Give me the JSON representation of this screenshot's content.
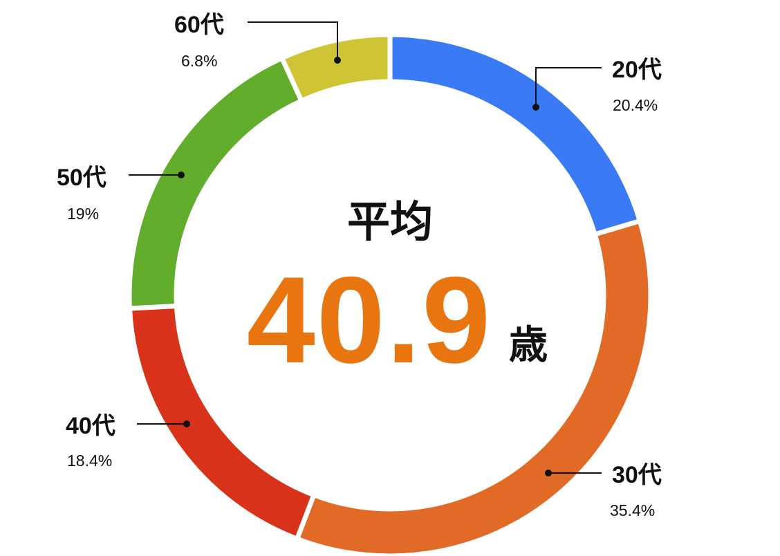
{
  "chart_data": {
    "type": "pie",
    "donut": true,
    "start": "top",
    "direction": "clockwise",
    "categories": [
      "20代",
      "30代",
      "40代",
      "50代",
      "60代"
    ],
    "values": [
      20.4,
      35.4,
      18.4,
      19,
      6.8
    ],
    "value_labels": [
      "20.4%",
      "35.4%",
      "18.4%",
      "19%",
      "6.8%"
    ],
    "colors": [
      "#3a7bf5",
      "#e16b26",
      "#d9321a",
      "#62ae2c",
      "#cfc434"
    ],
    "center": {
      "label": "平均",
      "value": "40.9",
      "unit": "歳",
      "value_color": "#e8750f"
    }
  }
}
